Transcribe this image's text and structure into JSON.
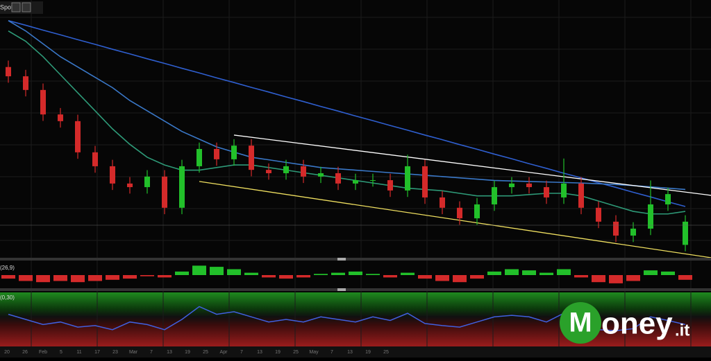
{
  "chart_data": {
    "type": "candlestick",
    "legend_text": "Spot",
    "ylim": [
      0,
      100
    ],
    "up_color": "#22c02a",
    "down_color": "#d42a2a",
    "open": [
      74,
      70.4,
      65.1,
      55.6,
      53.0,
      40.9,
      35.5,
      28.8,
      27.4,
      31.5,
      19.4,
      35.5,
      42.2,
      38.2,
      43.5,
      34.1,
      32.8,
      35.5,
      31.5,
      32.8,
      28.8,
      30.1,
      30.1,
      26.1,
      35.5,
      23.4,
      19.4,
      15.3,
      20.7,
      27.4,
      28.8,
      27.4,
      23.4,
      28.8,
      19.4,
      14.0,
      8.6,
      11.3,
      20.7,
      5.0
    ],
    "high": [
      76.5,
      72.9,
      67.6,
      58.1,
      55.5,
      43.4,
      38.0,
      31.3,
      34.0,
      34.0,
      38.0,
      44.7,
      44.7,
      46.0,
      46.0,
      36.6,
      38.0,
      38.0,
      35.3,
      35.3,
      32.6,
      32.6,
      32.6,
      40.0,
      38.0,
      25.9,
      21.9,
      23.2,
      29.9,
      31.3,
      31.3,
      29.9,
      38.5,
      31.3,
      21.9,
      16.5,
      13.8,
      30.0,
      27.2,
      16.5
    ],
    "low": [
      67.9,
      62.6,
      53.1,
      50.5,
      38.4,
      33.0,
      26.3,
      24.9,
      24.9,
      16.9,
      16.9,
      33.0,
      35.7,
      35.7,
      31.6,
      30.3,
      30.3,
      29.0,
      29.0,
      26.3,
      26.3,
      27.6,
      23.6,
      23.6,
      20.9,
      16.9,
      12.8,
      12.8,
      18.2,
      24.9,
      24.9,
      20.9,
      20.9,
      16.9,
      11.5,
      6.1,
      6.1,
      8.8,
      18.2,
      2.5
    ],
    "close": [
      70.4,
      65.1,
      55.6,
      53.0,
      40.9,
      35.5,
      28.8,
      27.4,
      31.5,
      19.4,
      35.5,
      42.2,
      38.2,
      43.5,
      34.1,
      32.8,
      35.5,
      31.5,
      32.8,
      28.8,
      30.1,
      30.1,
      26.1,
      35.5,
      23.4,
      19.4,
      15.3,
      20.7,
      27.4,
      28.8,
      27.4,
      23.4,
      28.8,
      19.4,
      14.0,
      8.6,
      11.3,
      20.7,
      24.7,
      14.0
    ],
    "series": [
      {
        "color": "#2f5fd0",
        "values": [
          92,
          90.2,
          88.3,
          86.5,
          84.6,
          82.8,
          80.9,
          79.1,
          77.2,
          75.4,
          73.5,
          71.7,
          69.8,
          68.0,
          66.1,
          64.3,
          62.4,
          60.6,
          58.7,
          56.9,
          55.0,
          53.2,
          51.3,
          49.5,
          47.6,
          45.8,
          43.9,
          42.1,
          40.2,
          38.4,
          36.5,
          34.7,
          32.8,
          31.0,
          29.1,
          27.3,
          25.4,
          23.6,
          21.7,
          19.9
        ]
      },
      {
        "color": "#3a78c8",
        "values": [
          92,
          88,
          83,
          78,
          74,
          70,
          66,
          61,
          57,
          53,
          49,
          46,
          43,
          41,
          39,
          38,
          37,
          36,
          35,
          34.5,
          34,
          33.5,
          33,
          32.5,
          32,
          31.5,
          31,
          30.5,
          30,
          29.8,
          29.6,
          29.4,
          29.2,
          29,
          28.7,
          28.4,
          28.0,
          27.5,
          27,
          26.5
        ]
      },
      {
        "color": "#2e9a78",
        "values": [
          88,
          84,
          78,
          71,
          64,
          57,
          50,
          44,
          39,
          36,
          34,
          34,
          35,
          36,
          36,
          35,
          34,
          33,
          32,
          31,
          30,
          29,
          28,
          27,
          26.5,
          26,
          25,
          24,
          24,
          24,
          24.5,
          25,
          25,
          24,
          22,
          20,
          18,
          17,
          17,
          18
        ]
      }
    ],
    "trendlines": [
      {
        "color": "#ffffff",
        "points": [
          [
            13,
            47.6
          ],
          [
            40.5,
            24.2
          ]
        ]
      },
      {
        "color": "#f0e060",
        "points": [
          [
            11,
            29.6
          ],
          [
            40.5,
            0
          ]
        ]
      }
    ],
    "macd": {
      "label": "(26,9)",
      "ylim": [
        -1,
        1
      ],
      "values": [
        -0.3,
        -0.5,
        -0.6,
        -0.5,
        -0.6,
        -0.5,
        -0.4,
        -0.3,
        -0.1,
        -0.2,
        0.3,
        0.8,
        0.7,
        0.5,
        0.2,
        -0.2,
        -0.3,
        -0.2,
        0.1,
        0.2,
        0.3,
        0.1,
        -0.2,
        0.2,
        -0.3,
        -0.5,
        -0.6,
        -0.3,
        0.3,
        0.5,
        0.4,
        0.2,
        0.5,
        -0.2,
        -0.6,
        -0.7,
        -0.5,
        0.4,
        0.3,
        -0.4
      ]
    },
    "rsi": {
      "label": "(0,30)",
      "ylim": [
        0,
        100
      ],
      "color": "#4060e0",
      "values": [
        60,
        50,
        40,
        45,
        35,
        38,
        30,
        45,
        40,
        30,
        50,
        75,
        60,
        65,
        55,
        45,
        50,
        45,
        55,
        50,
        45,
        55,
        48,
        62,
        42,
        38,
        35,
        45,
        55,
        58,
        55,
        45,
        62,
        35,
        30,
        28,
        32,
        55,
        48,
        40
      ]
    },
    "x_labels": [
      "20",
      "26",
      "Feb",
      "5",
      "11",
      "17",
      "23",
      "Mar",
      "7",
      "13",
      "19",
      "25",
      "Apr",
      "7",
      "13",
      "19",
      "25",
      "May",
      "7",
      "13",
      "19",
      "25"
    ]
  },
  "logo": {
    "initial": "M",
    "name": "oney",
    "suffix": ".it"
  }
}
